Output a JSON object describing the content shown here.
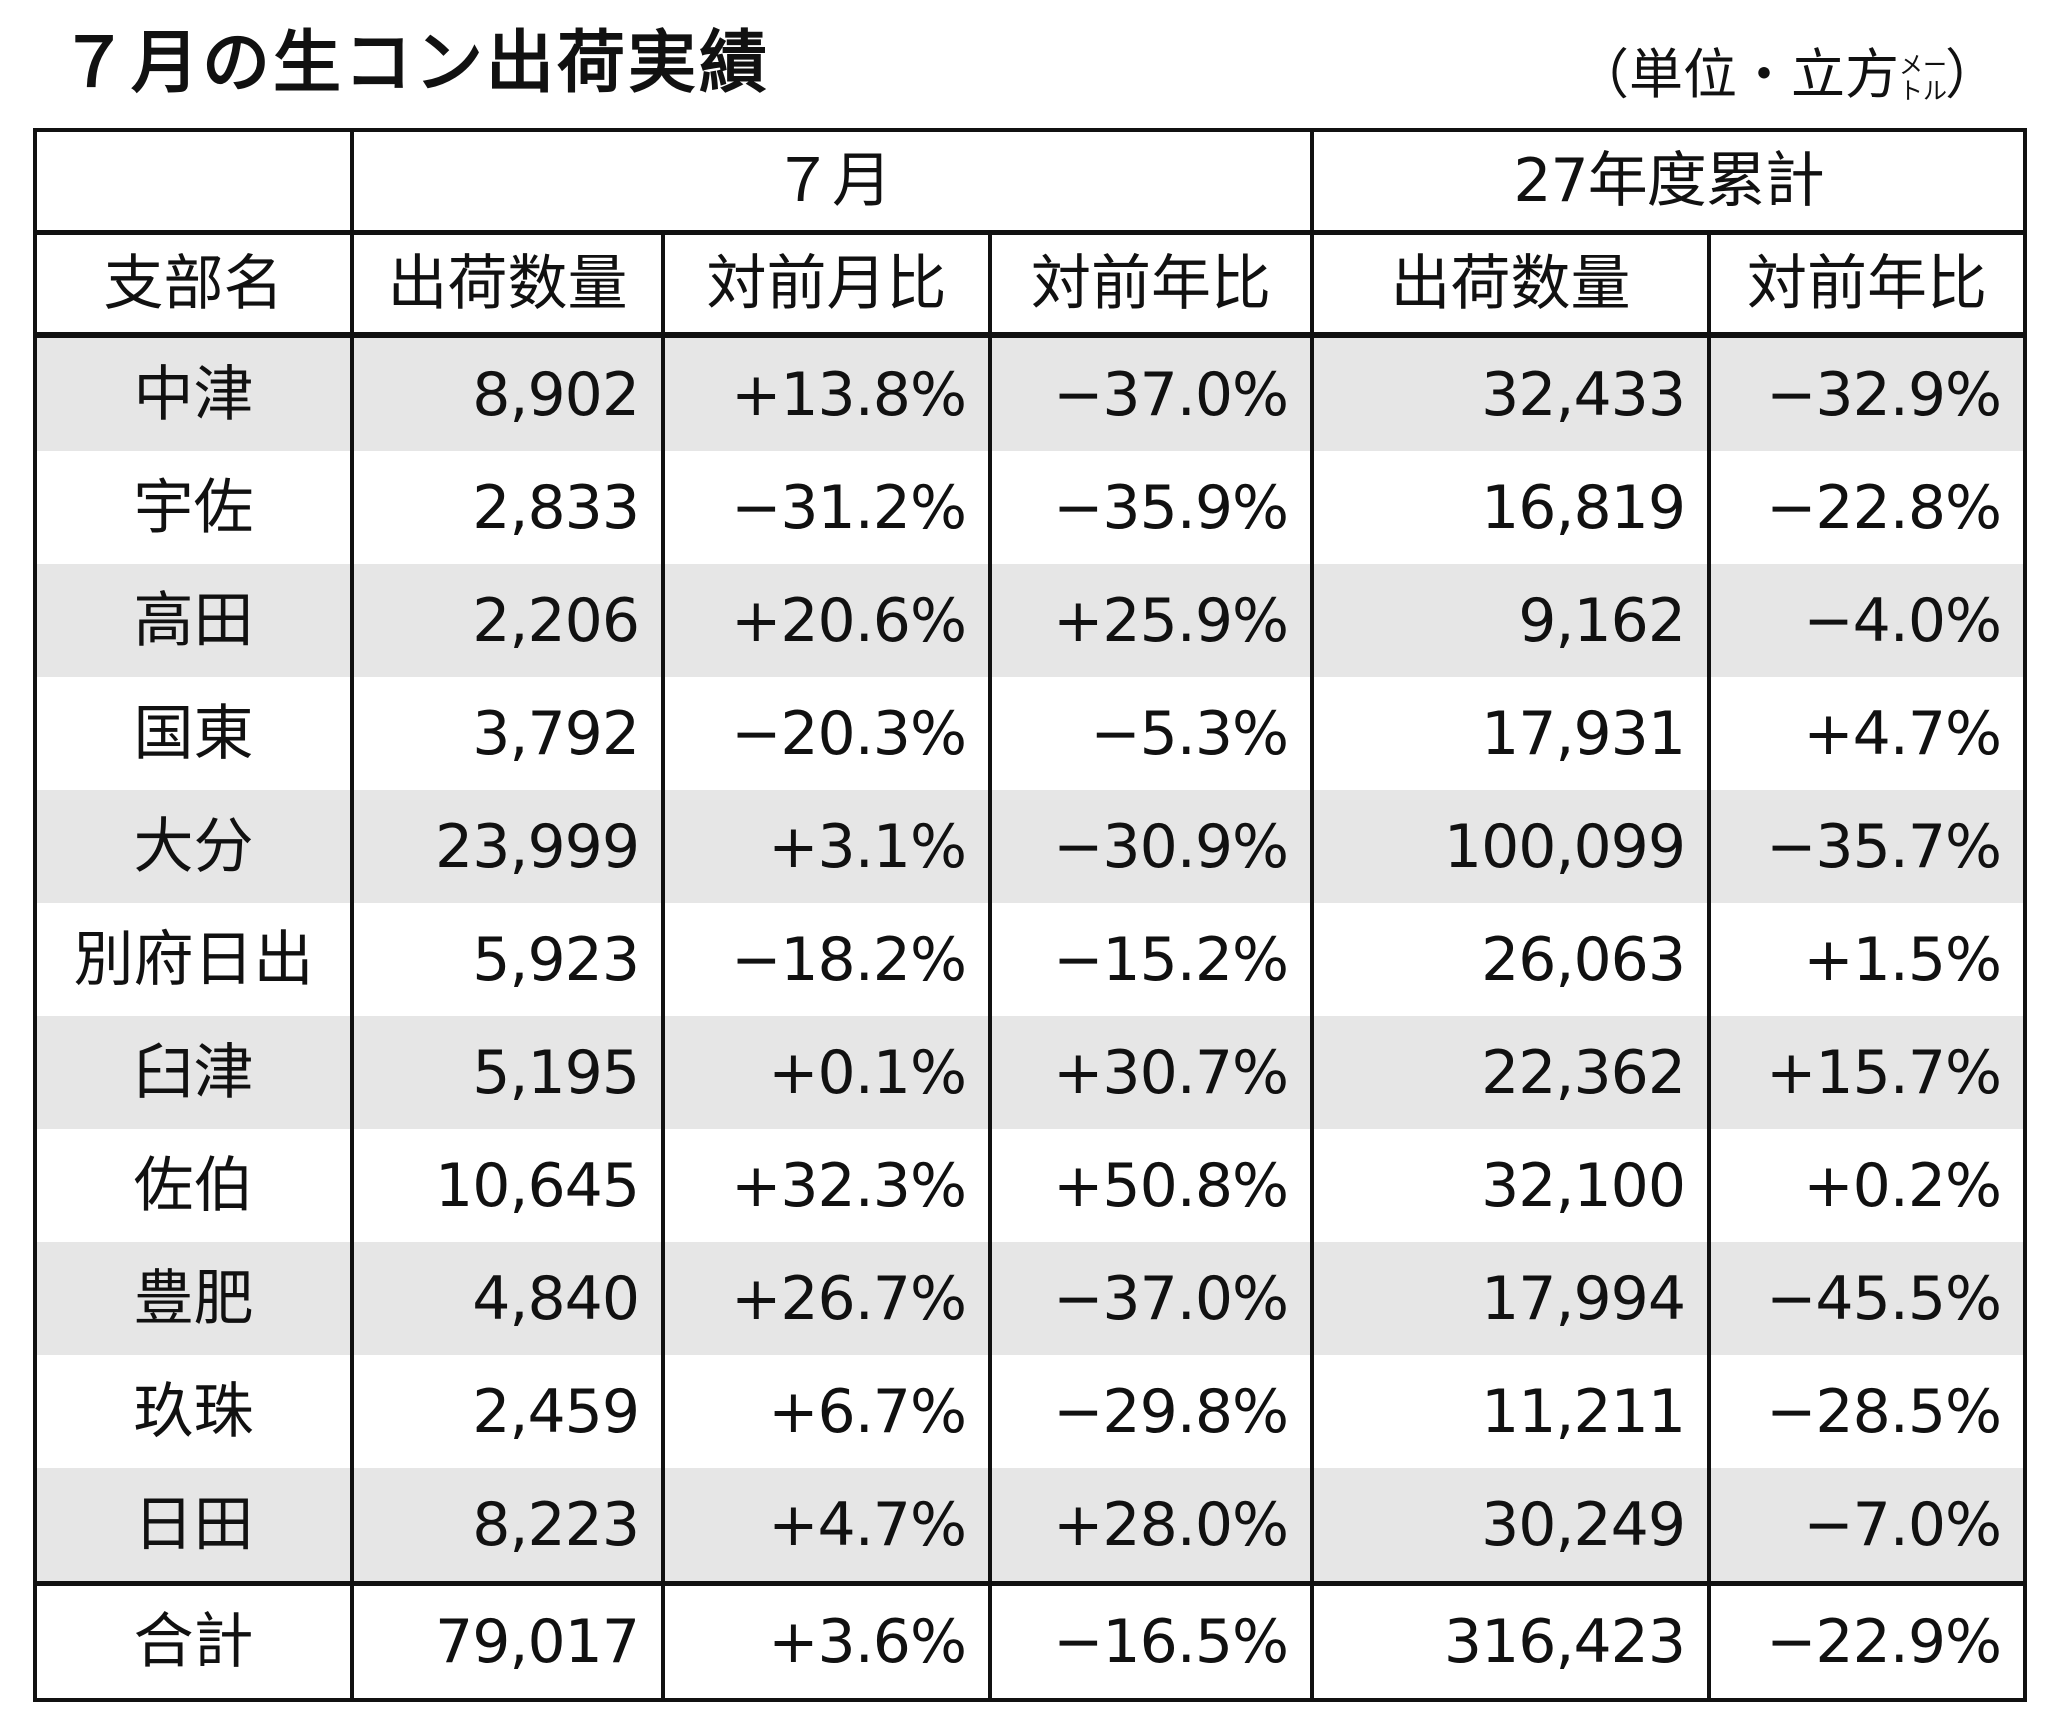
{
  "title": "７月の生コン出荷実績",
  "unit": {
    "prefix": "（単位・立方",
    "small_top": "メー",
    "small_bottom": "トル",
    "suffix": "）"
  },
  "header": {
    "group_month": "７月",
    "group_cumulative": "27年度累計",
    "columns": [
      "支部名",
      "出荷数量",
      "対前月比",
      "対前年比",
      "出荷数量",
      "対前年比"
    ]
  },
  "rows": [
    {
      "name": "中津",
      "qty": "8,902",
      "mom": "+13.8%",
      "yoy": "−37.0%",
      "cum_qty": "32,433",
      "cum_yoy": "−32.9%"
    },
    {
      "name": "宇佐",
      "qty": "2,833",
      "mom": "−31.2%",
      "yoy": "−35.9%",
      "cum_qty": "16,819",
      "cum_yoy": "−22.8%"
    },
    {
      "name": "高田",
      "qty": "2,206",
      "mom": "+20.6%",
      "yoy": "+25.9%",
      "cum_qty": "9,162",
      "cum_yoy": "−4.0%"
    },
    {
      "name": "国東",
      "qty": "3,792",
      "mom": "−20.3%",
      "yoy": "−5.3%",
      "cum_qty": "17,931",
      "cum_yoy": "+4.7%"
    },
    {
      "name": "大分",
      "qty": "23,999",
      "mom": "+3.1%",
      "yoy": "−30.9%",
      "cum_qty": "100,099",
      "cum_yoy": "−35.7%"
    },
    {
      "name": "別府日出",
      "qty": "5,923",
      "mom": "−18.2%",
      "yoy": "−15.2%",
      "cum_qty": "26,063",
      "cum_yoy": "+1.5%"
    },
    {
      "name": "臼津",
      "qty": "5,195",
      "mom": "+0.1%",
      "yoy": "+30.7%",
      "cum_qty": "22,362",
      "cum_yoy": "+15.7%"
    },
    {
      "name": "佐伯",
      "qty": "10,645",
      "mom": "+32.3%",
      "yoy": "+50.8%",
      "cum_qty": "32,100",
      "cum_yoy": "+0.2%"
    },
    {
      "name": "豊肥",
      "qty": "4,840",
      "mom": "+26.7%",
      "yoy": "−37.0%",
      "cum_qty": "17,994",
      "cum_yoy": "−45.5%"
    },
    {
      "name": "玖珠",
      "qty": "2,459",
      "mom": "+6.7%",
      "yoy": "−29.8%",
      "cum_qty": "11,211",
      "cum_yoy": "−28.5%"
    },
    {
      "name": "日田",
      "qty": "8,223",
      "mom": "+4.7%",
      "yoy": "+28.0%",
      "cum_qty": "30,249",
      "cum_yoy": "−7.0%"
    }
  ],
  "total": {
    "name": "合計",
    "qty": "79,017",
    "mom": "+3.6%",
    "yoy": "−16.5%",
    "cum_qty": "316,423",
    "cum_yoy": "−22.9%"
  },
  "colors": {
    "shade": "#e6e6e6",
    "border": "#111111"
  }
}
